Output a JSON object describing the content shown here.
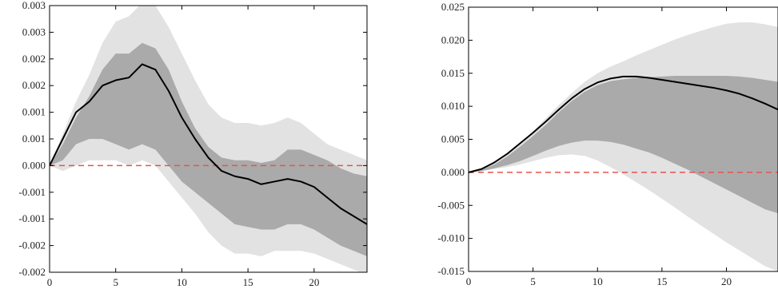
{
  "chart_data": [
    {
      "type": "line",
      "title": "",
      "xlabel": "",
      "ylabel": "",
      "xlim": [
        0,
        24
      ],
      "ylim": [
        -0.002,
        0.003
      ],
      "xticks": [
        0,
        5,
        10,
        15,
        20
      ],
      "xtick_labels": [
        "0",
        "5",
        "10",
        "15",
        "20"
      ],
      "yticks": [
        -0.002,
        -0.0015,
        -0.001,
        -0.0005,
        0.0,
        0.0005,
        0.001,
        0.0015,
        0.002,
        0.0025,
        0.003
      ],
      "ytick_labels": [
        "-0.002",
        "-0.002",
        "-0.001",
        "-0.001",
        "0.000",
        "0.001",
        "0.001",
        "0.002",
        "0.002",
        "0.003",
        "0.003"
      ],
      "zero_line": true,
      "grid": false,
      "x": [
        0,
        1,
        2,
        3,
        4,
        5,
        6,
        7,
        8,
        9,
        10,
        11,
        12,
        13,
        14,
        15,
        16,
        17,
        18,
        19,
        20,
        21,
        22,
        23,
        24
      ],
      "bands": [
        {
          "color": "#e2e2e2",
          "upper": [
            0,
            0.0006,
            0.0012,
            0.0017,
            0.0023,
            0.0027,
            0.0028,
            0.00305,
            0.003,
            0.0026,
            0.0021,
            0.0016,
            0.00115,
            0.0009,
            0.0008,
            0.0008,
            0.00075,
            0.0008,
            0.0009,
            0.0008,
            0.0006,
            0.0004,
            0.0003,
            0.0002,
            0.0001
          ],
          "lower": [
            0,
            -0.0001,
            0.0,
            0.0001,
            0.0001,
            0.0001,
            0.0,
            0.0001,
            0.0,
            -0.0003,
            -0.0006,
            -0.0009,
            -0.00125,
            -0.0015,
            -0.00165,
            -0.00165,
            -0.0017,
            -0.0016,
            -0.0016,
            -0.0016,
            -0.00165,
            -0.00175,
            -0.00185,
            -0.00195,
            -0.00205
          ]
        },
        {
          "color": "#aaaaaa",
          "upper": [
            0,
            0.0004,
            0.0009,
            0.0013,
            0.0018,
            0.0021,
            0.0021,
            0.0023,
            0.0022,
            0.0018,
            0.0012,
            0.0007,
            0.00035,
            0.00015,
            0.0001,
            0.0001,
            5e-05,
            0.0001,
            0.0003,
            0.0003,
            0.0002,
            0.0001,
            -5e-05,
            -0.00015,
            -0.0002
          ],
          "lower": [
            0,
            0.0001,
            0.0004,
            0.0005,
            0.0005,
            0.0004,
            0.0003,
            0.0004,
            0.0003,
            0.0,
            -0.0003,
            -0.0005,
            -0.0007,
            -0.0009,
            -0.0011,
            -0.00115,
            -0.0012,
            -0.0012,
            -0.0011,
            -0.0011,
            -0.0012,
            -0.00135,
            -0.0015,
            -0.0016,
            -0.0017
          ]
        }
      ],
      "series": [
        {
          "color": "#000000",
          "values": [
            0,
            0.0005,
            0.001,
            0.0012,
            0.0015,
            0.0016,
            0.00165,
            0.0019,
            0.0018,
            0.0014,
            0.0009,
            0.0005,
            0.00015,
            -0.0001,
            -0.0002,
            -0.00025,
            -0.00035,
            -0.0003,
            -0.00025,
            -0.0003,
            -0.0004,
            -0.0006,
            -0.0008,
            -0.00095,
            -0.0011
          ]
        }
      ],
      "colors": {
        "zero_line": "#e8534f",
        "line": "#000000",
        "axis": "#000000"
      }
    },
    {
      "type": "line",
      "title": "",
      "xlabel": "",
      "ylabel": "",
      "xlim": [
        0,
        24
      ],
      "ylim": [
        -0.015,
        0.025
      ],
      "xticks": [
        0,
        5,
        10,
        15,
        20
      ],
      "xtick_labels": [
        "0",
        "5",
        "10",
        "15",
        "20"
      ],
      "yticks": [
        -0.015,
        -0.01,
        -0.005,
        0.0,
        0.005,
        0.01,
        0.015,
        0.02,
        0.025
      ],
      "ytick_labels": [
        "-0.015",
        "-0.010",
        "-0.005",
        "0.000",
        "0.005",
        "0.010",
        "0.015",
        "0.020",
        "0.025"
      ],
      "zero_line": true,
      "grid": false,
      "x": [
        0,
        1,
        2,
        3,
        4,
        5,
        6,
        7,
        8,
        9,
        10,
        11,
        12,
        13,
        14,
        15,
        16,
        17,
        18,
        19,
        20,
        21,
        22,
        23,
        24
      ],
      "bands": [
        {
          "color": "#e2e2e2",
          "upper": [
            0,
            0.0005,
            0.0015,
            0.0028,
            0.0044,
            0.0062,
            0.0082,
            0.0102,
            0.012,
            0.0137,
            0.015,
            0.016,
            0.0168,
            0.0177,
            0.0185,
            0.0193,
            0.0201,
            0.0208,
            0.0214,
            0.022,
            0.0225,
            0.0227,
            0.0227,
            0.0224,
            0.022
          ],
          "lower": [
            0,
            0.0002,
            0.0005,
            0.0008,
            0.0012,
            0.0017,
            0.0022,
            0.0026,
            0.0027,
            0.0025,
            0.0018,
            0.0008,
            -0.0003,
            -0.0015,
            -0.0027,
            -0.004,
            -0.0053,
            -0.0067,
            -0.008,
            -0.0093,
            -0.0106,
            -0.0118,
            -0.013,
            -0.0142,
            -0.015
          ]
        },
        {
          "color": "#aaaaaa",
          "upper": [
            0,
            0.0004,
            0.0012,
            0.0024,
            0.0039,
            0.0055,
            0.0072,
            0.0091,
            0.0108,
            0.0122,
            0.0132,
            0.0138,
            0.0141,
            0.0143,
            0.0144,
            0.0145,
            0.0146,
            0.0146,
            0.0146,
            0.0146,
            0.0146,
            0.0145,
            0.0143,
            0.014,
            0.0137
          ],
          "lower": [
            0,
            0.0002,
            0.0006,
            0.0011,
            0.0017,
            0.0025,
            0.0033,
            0.004,
            0.0045,
            0.0048,
            0.0048,
            0.0046,
            0.0042,
            0.0036,
            0.003,
            0.0022,
            0.0013,
            0.0004,
            -0.0006,
            -0.0016,
            -0.0026,
            -0.0036,
            -0.0046,
            -0.0056,
            -0.0062
          ]
        }
      ],
      "series": [
        {
          "color": "#000000",
          "values": [
            0,
            0.0005,
            0.0015,
            0.0028,
            0.0044,
            0.006,
            0.0077,
            0.0095,
            0.0112,
            0.0126,
            0.0136,
            0.0142,
            0.0145,
            0.0145,
            0.0143,
            0.014,
            0.0137,
            0.0134,
            0.0131,
            0.0128,
            0.0124,
            0.0119,
            0.0112,
            0.0104,
            0.0095
          ]
        }
      ],
      "colors": {
        "zero_line": "#e8534f",
        "line": "#000000",
        "axis": "#000000"
      }
    }
  ]
}
